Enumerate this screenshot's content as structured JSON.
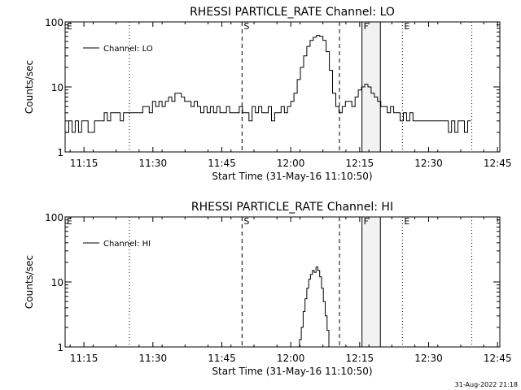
{
  "chart_data": [
    {
      "type": "line",
      "title": "RHESSI PARTICLE_RATE Channel: LO",
      "xlabel": "Start Time (31-May-16 11:10:50)",
      "ylabel": "Counts/sec",
      "yscale": "log",
      "ylim": [
        1,
        100
      ],
      "xlim_minutes": [
        -1.1,
        93.5
      ],
      "x_ticks": [
        {
          "min": 3,
          "label": "11:15"
        },
        {
          "min": 18,
          "label": "11:30"
        },
        {
          "min": 33,
          "label": "11:45"
        },
        {
          "min": 48,
          "label": "12:00"
        },
        {
          "min": 63,
          "label": "12:15"
        },
        {
          "min": 78,
          "label": "12:30"
        },
        {
          "min": 93,
          "label": "12:45"
        }
      ],
      "y_ticks": [
        {
          "value": 1,
          "label": "1"
        },
        {
          "value": 10,
          "label": "10"
        },
        {
          "value": 100,
          "label": "100"
        }
      ],
      "legend": {
        "label": "Channel: LO",
        "position": "top-left"
      },
      "markers": [
        {
          "min": -1.1,
          "label": "E",
          "style": "none"
        },
        {
          "min": 12.9,
          "label": "",
          "style": "dotted"
        },
        {
          "min": 37.4,
          "label": "S",
          "style": "dashed"
        },
        {
          "min": 58.6,
          "label": "",
          "style": "dashed"
        },
        {
          "min": 63.5,
          "label": "F",
          "style": "solid"
        },
        {
          "min": 67.5,
          "label": "",
          "style": "solid"
        },
        {
          "min": 72.3,
          "label": "E",
          "style": "dotted"
        },
        {
          "min": 87.4,
          "label": "",
          "style": "dotted"
        }
      ],
      "shaded_region": [
        63.5,
        67.5
      ],
      "series": [
        {
          "name": "Channel: LO",
          "points": [
            [
              -1.0,
              2.0
            ],
            [
              -0.3,
              3.0
            ],
            [
              0.4,
              2.0
            ],
            [
              1.1,
              3.0
            ],
            [
              1.8,
              2.0
            ],
            [
              2.5,
              3.0
            ],
            [
              3.2,
              3.0
            ],
            [
              3.9,
              2.0
            ],
            [
              4.6,
              2.0
            ],
            [
              5.3,
              3.0
            ],
            [
              6.0,
              3.0
            ],
            [
              6.7,
              3.0
            ],
            [
              7.4,
              4.0
            ],
            [
              8.1,
              3.0
            ],
            [
              8.8,
              4.0
            ],
            [
              9.5,
              4.0
            ],
            [
              10.2,
              4.0
            ],
            [
              10.9,
              3.0
            ],
            [
              11.6,
              4.0
            ],
            [
              12.3,
              4.0
            ],
            [
              13.0,
              4.0
            ],
            [
              13.7,
              4.0
            ],
            [
              14.4,
              4.0
            ],
            [
              15.1,
              4.0
            ],
            [
              15.8,
              5.0
            ],
            [
              16.5,
              5.0
            ],
            [
              17.2,
              4.0
            ],
            [
              17.9,
              6.0
            ],
            [
              18.6,
              5.0
            ],
            [
              19.3,
              6.0
            ],
            [
              20.0,
              5.0
            ],
            [
              20.7,
              6.0
            ],
            [
              21.4,
              7.0
            ],
            [
              22.1,
              6.0
            ],
            [
              22.8,
              8.0
            ],
            [
              23.5,
              8.0
            ],
            [
              24.2,
              7.0
            ],
            [
              24.9,
              6.0
            ],
            [
              25.6,
              6.0
            ],
            [
              26.3,
              5.0
            ],
            [
              27.0,
              6.0
            ],
            [
              27.7,
              5.0
            ],
            [
              28.4,
              4.0
            ],
            [
              29.1,
              5.0
            ],
            [
              29.8,
              4.0
            ],
            [
              30.5,
              5.0
            ],
            [
              31.2,
              4.0
            ],
            [
              31.9,
              5.0
            ],
            [
              32.6,
              4.0
            ],
            [
              33.3,
              4.0
            ],
            [
              34.0,
              5.0
            ],
            [
              34.7,
              4.0
            ],
            [
              35.4,
              4.0
            ],
            [
              36.1,
              4.0
            ],
            [
              36.8,
              5.0
            ],
            [
              37.5,
              4.0
            ],
            [
              38.2,
              4.0
            ],
            [
              38.9,
              3.0
            ],
            [
              39.6,
              5.0
            ],
            [
              40.3,
              4.0
            ],
            [
              41.0,
              5.0
            ],
            [
              41.7,
              4.0
            ],
            [
              42.4,
              4.0
            ],
            [
              43.1,
              5.0
            ],
            [
              43.8,
              3.0
            ],
            [
              44.5,
              4.0
            ],
            [
              45.2,
              4.0
            ],
            [
              45.9,
              5.0
            ],
            [
              46.6,
              4.0
            ],
            [
              47.3,
              5.0
            ],
            [
              48.0,
              6.0
            ],
            [
              48.7,
              8.0
            ],
            [
              49.4,
              13.0
            ],
            [
              50.1,
              20.0
            ],
            [
              50.8,
              30.0
            ],
            [
              51.5,
              42.0
            ],
            [
              52.2,
              52.0
            ],
            [
              52.9,
              58.0
            ],
            [
              53.6,
              62.0
            ],
            [
              54.3,
              60.0
            ],
            [
              55.0,
              52.0
            ],
            [
              55.7,
              35.0
            ],
            [
              56.4,
              18.0
            ],
            [
              57.1,
              8.0
            ],
            [
              57.8,
              5.0
            ],
            [
              58.5,
              4.0
            ],
            [
              59.2,
              5.0
            ],
            [
              59.9,
              6.0
            ],
            [
              60.6,
              6.0
            ],
            [
              61.3,
              5.0
            ],
            [
              62.0,
              7.0
            ],
            [
              62.7,
              9.0
            ],
            [
              63.4,
              10.0
            ],
            [
              64.1,
              11.0
            ],
            [
              64.8,
              10.0
            ],
            [
              65.5,
              8.0
            ],
            [
              66.2,
              7.0
            ],
            [
              66.9,
              6.0
            ],
            [
              67.6,
              5.0
            ],
            [
              68.3,
              5.0
            ],
            [
              69.0,
              4.0
            ],
            [
              69.7,
              5.0
            ],
            [
              70.4,
              4.0
            ],
            [
              71.1,
              4.0
            ],
            [
              71.8,
              3.0
            ],
            [
              72.5,
              4.0
            ],
            [
              73.2,
              3.0
            ],
            [
              73.9,
              4.0
            ],
            [
              74.6,
              3.0
            ],
            [
              75.3,
              3.0
            ],
            [
              76.0,
              3.0
            ],
            [
              76.7,
              3.0
            ],
            [
              77.4,
              3.0
            ],
            [
              78.1,
              3.0
            ],
            [
              78.8,
              3.0
            ],
            [
              79.5,
              3.0
            ],
            [
              80.2,
              3.0
            ],
            [
              80.9,
              3.0
            ],
            [
              81.6,
              3.0
            ],
            [
              82.3,
              2.0
            ],
            [
              83.0,
              3.0
            ],
            [
              83.7,
              2.0
            ],
            [
              84.4,
              3.0
            ],
            [
              85.1,
              3.0
            ],
            [
              85.8,
              2.0
            ],
            [
              86.5,
              3.0
            ]
          ]
        }
      ]
    },
    {
      "type": "line",
      "title": "RHESSI PARTICLE_RATE Channel: HI",
      "xlabel": "Start Time (31-May-16 11:10:50)",
      "ylabel": "Counts/sec",
      "yscale": "log",
      "ylim": [
        1,
        100
      ],
      "xlim_minutes": [
        -1.1,
        93.5
      ],
      "x_ticks": [
        {
          "min": 3,
          "label": "11:15"
        },
        {
          "min": 18,
          "label": "11:30"
        },
        {
          "min": 33,
          "label": "11:45"
        },
        {
          "min": 48,
          "label": "12:00"
        },
        {
          "min": 63,
          "label": "12:15"
        },
        {
          "min": 78,
          "label": "12:30"
        },
        {
          "min": 93,
          "label": "12:45"
        }
      ],
      "y_ticks": [
        {
          "value": 1,
          "label": "1"
        },
        {
          "value": 10,
          "label": "10"
        },
        {
          "value": 100,
          "label": "100"
        }
      ],
      "legend": {
        "label": "Channel: HI",
        "position": "top-left"
      },
      "markers": [
        {
          "min": -1.1,
          "label": "E",
          "style": "none"
        },
        {
          "min": 12.9,
          "label": "",
          "style": "dotted"
        },
        {
          "min": 37.4,
          "label": "S",
          "style": "dashed"
        },
        {
          "min": 58.6,
          "label": "",
          "style": "dashed"
        },
        {
          "min": 63.5,
          "label": "F",
          "style": "solid"
        },
        {
          "min": 67.5,
          "label": "",
          "style": "solid"
        },
        {
          "min": 72.3,
          "label": "E",
          "style": "dotted"
        },
        {
          "min": 87.4,
          "label": "",
          "style": "dotted"
        }
      ],
      "shaded_region": [
        63.5,
        67.5
      ],
      "series": [
        {
          "name": "Channel: HI",
          "points": [
            [
              49.5,
              1.0
            ],
            [
              49.9,
              1.3
            ],
            [
              50.3,
              2.0
            ],
            [
              50.7,
              3.5
            ],
            [
              51.1,
              5.5
            ],
            [
              51.5,
              8.0
            ],
            [
              51.9,
              11.0
            ],
            [
              52.3,
              13.0
            ],
            [
              52.7,
              15.0
            ],
            [
              53.1,
              14.0
            ],
            [
              53.5,
              17.0
            ],
            [
              53.9,
              15.0
            ],
            [
              54.3,
              12.0
            ],
            [
              54.7,
              8.0
            ],
            [
              55.1,
              5.0
            ],
            [
              55.5,
              3.0
            ],
            [
              55.9,
              1.8
            ],
            [
              56.3,
              1.0
            ]
          ]
        }
      ]
    }
  ],
  "footer": {
    "date": "31-Aug-2022 21:18"
  }
}
